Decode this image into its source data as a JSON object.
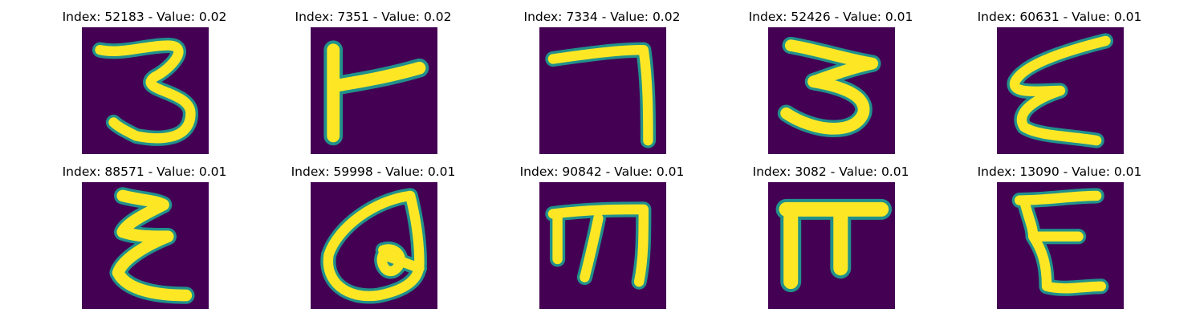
{
  "colors": {
    "background": "#440154",
    "stroke_core": "#fde725",
    "stroke_edge": "#21918c"
  },
  "chart_data": [
    {
      "type": "image",
      "title": "Index: 52183 - Value: 0.02",
      "index": 52183,
      "value": 0.02,
      "glyph": "three"
    },
    {
      "type": "image",
      "title": "Index: 7351 - Value: 0.02",
      "index": 7351,
      "value": 0.02,
      "glyph": "t-shape"
    },
    {
      "type": "image",
      "title": "Index: 7334 - Value: 0.02",
      "index": 7334,
      "value": 0.02,
      "glyph": "seven"
    },
    {
      "type": "image",
      "title": "Index: 52426 - Value: 0.01",
      "index": 52426,
      "value": 0.01,
      "glyph": "three"
    },
    {
      "type": "image",
      "title": "Index: 60631 - Value: 0.01",
      "index": 60631,
      "value": 0.01,
      "glyph": "epsilon-script"
    },
    {
      "type": "image",
      "title": "Index: 88571 - Value: 0.01",
      "index": 88571,
      "value": 0.01,
      "glyph": "epsilon"
    },
    {
      "type": "image",
      "title": "Index: 59998 - Value: 0.01",
      "index": 59998,
      "value": 0.01,
      "glyph": "loop"
    },
    {
      "type": "image",
      "title": "Index: 90842 - Value: 0.01",
      "index": 90842,
      "value": 0.01,
      "glyph": "m-shape"
    },
    {
      "type": "image",
      "title": "Index: 3082 - Value: 0.01",
      "index": 3082,
      "value": 0.01,
      "glyph": "pi"
    },
    {
      "type": "image",
      "title": "Index: 13090 - Value: 0.01",
      "index": 13090,
      "value": 0.01,
      "glyph": "epsilon"
    }
  ]
}
